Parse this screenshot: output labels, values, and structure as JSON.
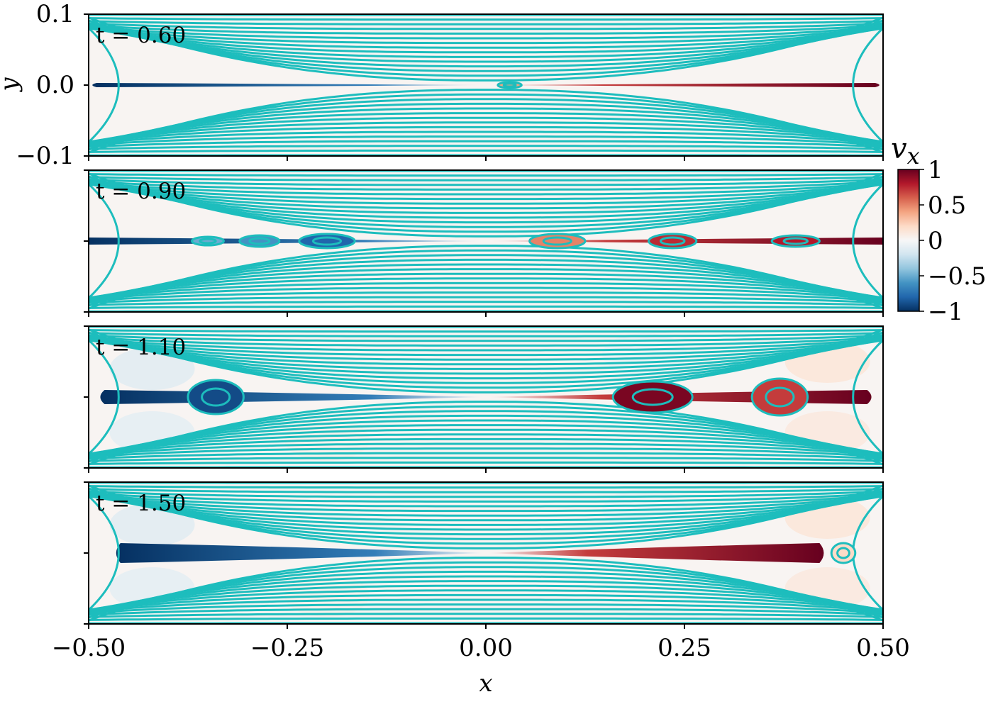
{
  "chart_data": {
    "type": "heatmap",
    "colorbar": {
      "label": "v_x",
      "label_main": "v",
      "label_sub": "x",
      "range": [
        -1,
        1
      ],
      "ticks": [
        1,
        0.5,
        0,
        -0.5,
        -1
      ],
      "tick_labels": [
        "1",
        "0.5",
        "0",
        "−0.5",
        "−1"
      ],
      "colormap": "RdBu_r",
      "colors": [
        "#053061",
        "#2166ac",
        "#4393c3",
        "#92c5de",
        "#d1e5f0",
        "#f7f7f7",
        "#fddbc7",
        "#f4a582",
        "#d6604d",
        "#b2182b",
        "#67001f"
      ]
    },
    "contour_color": "#1dbdbd",
    "xlabel": "x",
    "ylabel": "y",
    "xlim": [
      -0.5,
      0.5
    ],
    "ylim": [
      -0.1,
      0.1
    ],
    "xticks": [
      -0.5,
      -0.25,
      0,
      0.25,
      0.5
    ],
    "xtick_labels": [
      "−0.50",
      "−0.25",
      "0.00",
      "0.25",
      "0.50"
    ],
    "yticks": [
      0.1,
      0,
      -0.1
    ],
    "ytick_labels": [
      "0.1",
      "0.0",
      "−0.1"
    ],
    "panels": [
      {
        "label": "t = 0.60",
        "t": 0.6,
        "jet_extent": [
          -0.49,
          0.49
        ],
        "jet_halfwidth": 0.003,
        "plasmoids": [
          {
            "x": 0.03,
            "vx": 0.4,
            "w": 0.015,
            "h": 0.004
          }
        ]
      },
      {
        "label": "t = 0.90",
        "t": 0.9,
        "jet_extent": [
          -0.5,
          0.5
        ],
        "jet_halfwidth": 0.005,
        "plasmoids": [
          {
            "x": -0.35,
            "vx": -0.5,
            "w": 0.02,
            "h": 0.006
          },
          {
            "x": -0.285,
            "vx": -0.6,
            "w": 0.025,
            "h": 0.008
          },
          {
            "x": -0.2,
            "vx": -0.8,
            "w": 0.035,
            "h": 0.01
          },
          {
            "x": 0.09,
            "vx": 0.5,
            "w": 0.035,
            "h": 0.01
          },
          {
            "x": 0.235,
            "vx": 0.75,
            "w": 0.03,
            "h": 0.01
          },
          {
            "x": 0.39,
            "vx": 0.8,
            "w": 0.03,
            "h": 0.008
          }
        ]
      },
      {
        "label": "t = 1.10",
        "t": 1.1,
        "jet_extent": [
          -0.48,
          0.48
        ],
        "jet_halfwidth": 0.01,
        "plasmoids": [
          {
            "x": -0.34,
            "vx": -0.9,
            "w": 0.035,
            "h": 0.024
          },
          {
            "x": 0.21,
            "vx": 0.95,
            "w": 0.05,
            "h": 0.022
          },
          {
            "x": 0.37,
            "vx": 0.7,
            "w": 0.035,
            "h": 0.026
          }
        ]
      },
      {
        "label": "t = 1.50",
        "t": 1.5,
        "jet_extent": [
          -0.46,
          0.42
        ],
        "jet_halfwidth": 0.014,
        "plasmoids": [
          {
            "x": 0.45,
            "vx": 0.2,
            "w": 0.015,
            "h": 0.014
          }
        ]
      }
    ]
  }
}
